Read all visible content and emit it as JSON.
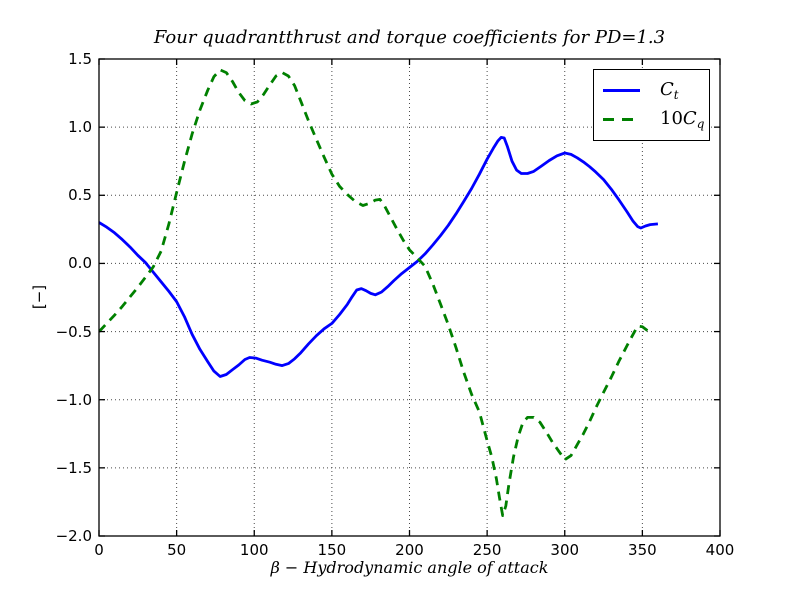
{
  "figure": {
    "background": "#ffffff"
  },
  "chart_data": {
    "type": "line",
    "title": "Four quadrantthrust and torque coefficients for PD=1.3",
    "xlabel": "β − Hydrodynamic angle of attack",
    "ylabel": "[−]",
    "xlim": [
      0,
      400
    ],
    "ylim": [
      -2.0,
      1.5
    ],
    "grid": true,
    "grid_style": "dotted",
    "legend_position": "upper right",
    "axis_color": "#000000",
    "xtick_values": [
      0,
      50,
      100,
      150,
      200,
      250,
      300,
      350,
      400
    ],
    "xtick_labels": [
      "0",
      "50",
      "100",
      "150",
      "200",
      "250",
      "300",
      "350",
      "400"
    ],
    "ytick_values": [
      -2.0,
      -1.5,
      -1.0,
      -0.5,
      0.0,
      0.5,
      1.0,
      1.5
    ],
    "ytick_labels": [
      "−2.0",
      "−1.5",
      "−1.0",
      "−0.5",
      "0.0",
      "0.5",
      "1.0",
      "1.5"
    ],
    "series": [
      {
        "name": "Ct",
        "label_prefix": "",
        "label_main": "C",
        "label_sub": "t",
        "color": "#0000ff",
        "style": "solid",
        "points": [
          [
            0,
            0.3
          ],
          [
            5,
            0.266
          ],
          [
            10,
            0.225
          ],
          [
            15,
            0.175
          ],
          [
            20,
            0.12
          ],
          [
            25,
            0.06
          ],
          [
            30,
            0.005
          ],
          [
            35,
            -0.065
          ],
          [
            40,
            -0.135
          ],
          [
            45,
            -0.205
          ],
          [
            50,
            -0.28
          ],
          [
            55,
            -0.39
          ],
          [
            60,
            -0.52
          ],
          [
            65,
            -0.63
          ],
          [
            70,
            -0.72
          ],
          [
            74,
            -0.79
          ],
          [
            78,
            -0.83
          ],
          [
            82,
            -0.815
          ],
          [
            86,
            -0.78
          ],
          [
            90,
            -0.745
          ],
          [
            94,
            -0.705
          ],
          [
            97,
            -0.69
          ],
          [
            101,
            -0.695
          ],
          [
            105,
            -0.71
          ],
          [
            110,
            -0.725
          ],
          [
            114,
            -0.74
          ],
          [
            118,
            -0.75
          ],
          [
            122,
            -0.735
          ],
          [
            126,
            -0.7
          ],
          [
            130,
            -0.655
          ],
          [
            135,
            -0.59
          ],
          [
            140,
            -0.53
          ],
          [
            145,
            -0.48
          ],
          [
            150,
            -0.44
          ],
          [
            155,
            -0.375
          ],
          [
            160,
            -0.3
          ],
          [
            163,
            -0.245
          ],
          [
            166,
            -0.195
          ],
          [
            169,
            -0.185
          ],
          [
            172,
            -0.2
          ],
          [
            175,
            -0.22
          ],
          [
            178,
            -0.23
          ],
          [
            182,
            -0.21
          ],
          [
            186,
            -0.17
          ],
          [
            190,
            -0.125
          ],
          [
            195,
            -0.075
          ],
          [
            200,
            -0.03
          ],
          [
            205,
            0.015
          ],
          [
            210,
            0.07
          ],
          [
            215,
            0.135
          ],
          [
            220,
            0.205
          ],
          [
            225,
            0.28
          ],
          [
            230,
            0.365
          ],
          [
            235,
            0.455
          ],
          [
            240,
            0.55
          ],
          [
            245,
            0.655
          ],
          [
            250,
            0.765
          ],
          [
            254,
            0.845
          ],
          [
            257,
            0.9
          ],
          [
            259,
            0.925
          ],
          [
            261,
            0.92
          ],
          [
            263,
            0.86
          ],
          [
            266,
            0.75
          ],
          [
            269,
            0.685
          ],
          [
            272,
            0.66
          ],
          [
            276,
            0.66
          ],
          [
            280,
            0.675
          ],
          [
            285,
            0.715
          ],
          [
            290,
            0.755
          ],
          [
            295,
            0.79
          ],
          [
            300,
            0.81
          ],
          [
            304,
            0.8
          ],
          [
            308,
            0.775
          ],
          [
            312,
            0.745
          ],
          [
            316,
            0.71
          ],
          [
            320,
            0.67
          ],
          [
            325,
            0.615
          ],
          [
            330,
            0.545
          ],
          [
            335,
            0.465
          ],
          [
            340,
            0.38
          ],
          [
            344,
            0.31
          ],
          [
            347,
            0.27
          ],
          [
            349,
            0.26
          ],
          [
            352,
            0.275
          ],
          [
            355,
            0.285
          ],
          [
            360,
            0.29
          ]
        ]
      },
      {
        "name": "10Cq",
        "label_prefix": "10",
        "label_main": "C",
        "label_sub": "q",
        "color": "#008000",
        "style": "dashed",
        "points": [
          [
            0,
            -0.5
          ],
          [
            5,
            -0.44
          ],
          [
            10,
            -0.38
          ],
          [
            15,
            -0.315
          ],
          [
            20,
            -0.245
          ],
          [
            25,
            -0.175
          ],
          [
            30,
            -0.1
          ],
          [
            35,
            -0.025
          ],
          [
            40,
            0.09
          ],
          [
            45,
            0.29
          ],
          [
            50,
            0.52
          ],
          [
            55,
            0.745
          ],
          [
            60,
            0.95
          ],
          [
            65,
            1.125
          ],
          [
            70,
            1.27
          ],
          [
            74,
            1.37
          ],
          [
            78,
            1.42
          ],
          [
            82,
            1.4
          ],
          [
            86,
            1.335
          ],
          [
            90,
            1.255
          ],
          [
            94,
            1.195
          ],
          [
            98,
            1.17
          ],
          [
            102,
            1.185
          ],
          [
            106,
            1.24
          ],
          [
            110,
            1.31
          ],
          [
            114,
            1.375
          ],
          [
            118,
            1.4
          ],
          [
            122,
            1.375
          ],
          [
            126,
            1.305
          ],
          [
            130,
            1.19
          ],
          [
            135,
            1.045
          ],
          [
            140,
            0.91
          ],
          [
            145,
            0.78
          ],
          [
            150,
            0.655
          ],
          [
            155,
            0.565
          ],
          [
            160,
            0.505
          ],
          [
            165,
            0.455
          ],
          [
            170,
            0.425
          ],
          [
            174,
            0.44
          ],
          [
            178,
            0.465
          ],
          [
            181,
            0.47
          ],
          [
            184,
            0.42
          ],
          [
            188,
            0.335
          ],
          [
            192,
            0.25
          ],
          [
            196,
            0.17
          ],
          [
            200,
            0.1
          ],
          [
            205,
            0.04
          ],
          [
            210,
            -0.02
          ],
          [
            215,
            -0.15
          ],
          [
            220,
            -0.3
          ],
          [
            225,
            -0.45
          ],
          [
            230,
            -0.62
          ],
          [
            235,
            -0.8
          ],
          [
            240,
            -0.96
          ],
          [
            245,
            -1.09
          ],
          [
            250,
            -1.3
          ],
          [
            253,
            -1.42
          ],
          [
            256,
            -1.58
          ],
          [
            258,
            -1.72
          ],
          [
            260,
            -1.85
          ],
          [
            262,
            -1.78
          ],
          [
            264,
            -1.62
          ],
          [
            267,
            -1.42
          ],
          [
            270,
            -1.27
          ],
          [
            273,
            -1.17
          ],
          [
            276,
            -1.13
          ],
          [
            280,
            -1.13
          ],
          [
            284,
            -1.165
          ],
          [
            288,
            -1.235
          ],
          [
            292,
            -1.31
          ],
          [
            296,
            -1.375
          ],
          [
            300,
            -1.44
          ],
          [
            304,
            -1.41
          ],
          [
            308,
            -1.33
          ],
          [
            312,
            -1.25
          ],
          [
            316,
            -1.16
          ],
          [
            320,
            -1.06
          ],
          [
            325,
            -0.945
          ],
          [
            330,
            -0.835
          ],
          [
            335,
            -0.715
          ],
          [
            340,
            -0.605
          ],
          [
            344,
            -0.52
          ],
          [
            347,
            -0.46
          ],
          [
            350,
            -0.465
          ],
          [
            353,
            -0.49
          ],
          [
            356,
            -0.51
          ]
        ]
      }
    ]
  }
}
